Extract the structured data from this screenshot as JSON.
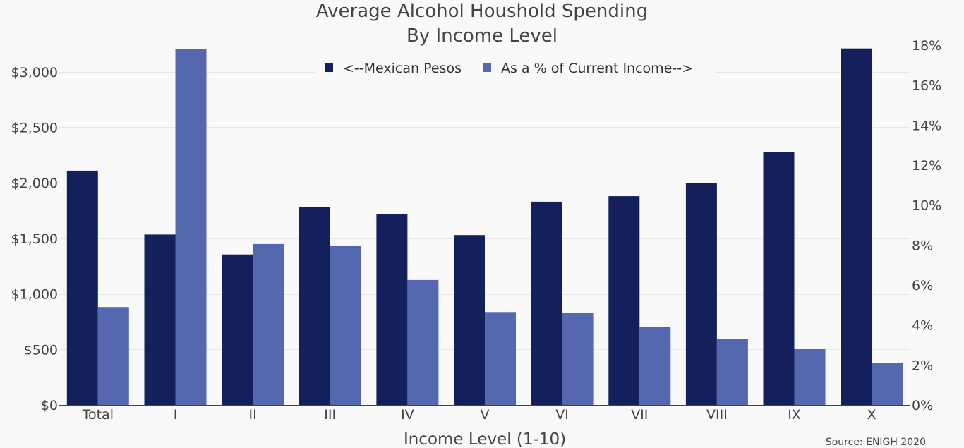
{
  "chart_data": {
    "type": "bar",
    "title": "Average Alcohol Houshold Spending",
    "subtitle": "By Income Level",
    "xlabel": "Income Level (1-10)",
    "ylabel": "",
    "y2label": "",
    "source": "Source: ENIGH 2020",
    "categories": [
      "Total",
      "I",
      "II",
      "III",
      "IV",
      "V",
      "VI",
      "VII",
      "VIII",
      "IX",
      "X"
    ],
    "series": [
      {
        "name": "<--Mexican Pesos",
        "axis": "left",
        "color": "#13205c",
        "values": [
          2110,
          1535,
          1355,
          1780,
          1715,
          1530,
          1830,
          1880,
          1995,
          2275,
          3210
        ]
      },
      {
        "name": "As a % of Current Income-->",
        "axis": "right",
        "color": "#5567ae",
        "values": [
          4.9,
          17.8,
          8.05,
          7.95,
          6.25,
          4.65,
          4.6,
          3.9,
          3.3,
          2.8,
          2.1
        ]
      }
    ],
    "ylim": [
      0,
      3240
    ],
    "y2lim": [
      0,
      18.0
    ],
    "yticks": [
      {
        "value": 0,
        "label": "$0"
      },
      {
        "value": 500,
        "label": "$500"
      },
      {
        "value": 1000,
        "label": "$1,000"
      },
      {
        "value": 1500,
        "label": "$1,500"
      },
      {
        "value": 2000,
        "label": "$2,000"
      },
      {
        "value": 2500,
        "label": "$2,500"
      },
      {
        "value": 3000,
        "label": "$3,000"
      }
    ],
    "y2ticks": [
      {
        "value": 0,
        "label": "0%"
      },
      {
        "value": 2,
        "label": "2%"
      },
      {
        "value": 4,
        "label": "4%"
      },
      {
        "value": 6,
        "label": "6%"
      },
      {
        "value": 8,
        "label": "8%"
      },
      {
        "value": 10,
        "label": "10%"
      },
      {
        "value": 12,
        "label": "12%"
      },
      {
        "value": 14,
        "label": "14%"
      },
      {
        "value": 16,
        "label": "16%"
      },
      {
        "value": 18,
        "label": "18%"
      }
    ],
    "grid": true,
    "legend_position": "top-center",
    "background_color": "#f9f9fa"
  }
}
